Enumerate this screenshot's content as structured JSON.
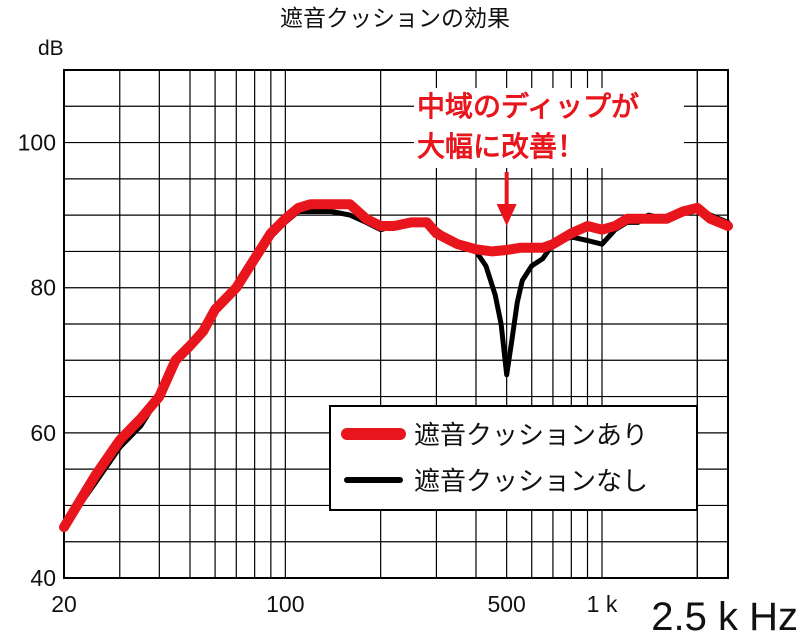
{
  "chart_data": {
    "type": "line",
    "title": "遮音クッションの効果",
    "ylabel": "dB",
    "xlabel": "",
    "x_scale": "log",
    "xlim": [
      20,
      2500
    ],
    "ylim": [
      40,
      110
    ],
    "x_ticks": [
      {
        "value": 20,
        "label": "20"
      },
      {
        "value": 100,
        "label": "100"
      },
      {
        "value": 500,
        "label": "500"
      },
      {
        "value": 1000,
        "label": "1 k"
      },
      {
        "value": 2500,
        "label": "2.5 k Hz"
      }
    ],
    "y_ticks": [
      {
        "value": 40,
        "label": "40"
      },
      {
        "value": 60,
        "label": "60"
      },
      {
        "value": 80,
        "label": "80"
      },
      {
        "value": 100,
        "label": "100"
      }
    ],
    "grid": true,
    "annotation": {
      "lines": [
        "中域のディップが",
        "大幅に改善！"
      ],
      "points_to_x": 500,
      "color": "#e8161c"
    },
    "legend_position": "bottom-right",
    "series": [
      {
        "name": "遮音クッションなし",
        "color": "#000000",
        "x": [
          20,
          25,
          30,
          35,
          40,
          45,
          50,
          55,
          60,
          70,
          80,
          90,
          100,
          110,
          120,
          140,
          160,
          180,
          200,
          220,
          250,
          280,
          300,
          350,
          400,
          430,
          460,
          480,
          500,
          520,
          540,
          560,
          600,
          650,
          700,
          750,
          800,
          900,
          1000,
          1100,
          1200,
          1300,
          1400,
          1600,
          1800,
          2000,
          2200,
          2500
        ],
        "y": [
          47,
          53,
          58,
          61,
          65,
          70,
          72,
          74,
          77,
          80,
          84,
          87,
          89,
          90.5,
          90.5,
          90.5,
          90,
          89,
          88,
          88.5,
          89,
          89,
          88,
          86,
          85,
          83,
          79,
          75,
          68,
          73,
          78,
          81,
          83,
          84,
          86,
          86.5,
          87,
          86.5,
          86,
          88,
          89,
          89,
          90,
          89.5,
          90.5,
          91,
          90,
          89
        ]
      },
      {
        "name": "遮音クッションあり",
        "color": "#e8161c",
        "x": [
          20,
          25,
          30,
          35,
          40,
          45,
          50,
          55,
          60,
          70,
          80,
          90,
          100,
          110,
          120,
          140,
          160,
          180,
          200,
          220,
          250,
          280,
          300,
          350,
          400,
          450,
          500,
          550,
          600,
          650,
          700,
          800,
          900,
          1000,
          1100,
          1200,
          1300,
          1400,
          1600,
          1800,
          2000,
          2200,
          2500
        ],
        "y": [
          47,
          54,
          59,
          62,
          65,
          70,
          72,
          74,
          77,
          80,
          84,
          87.5,
          89.5,
          91,
          91.5,
          91.5,
          91.5,
          89.5,
          88.5,
          88.5,
          89,
          89,
          87.5,
          86,
          85.3,
          85,
          85.2,
          85.5,
          85.5,
          85.5,
          86,
          87.5,
          88.5,
          88,
          88.5,
          89.5,
          89.5,
          89.5,
          89.5,
          90.5,
          91,
          89.5,
          88.5
        ]
      }
    ]
  }
}
